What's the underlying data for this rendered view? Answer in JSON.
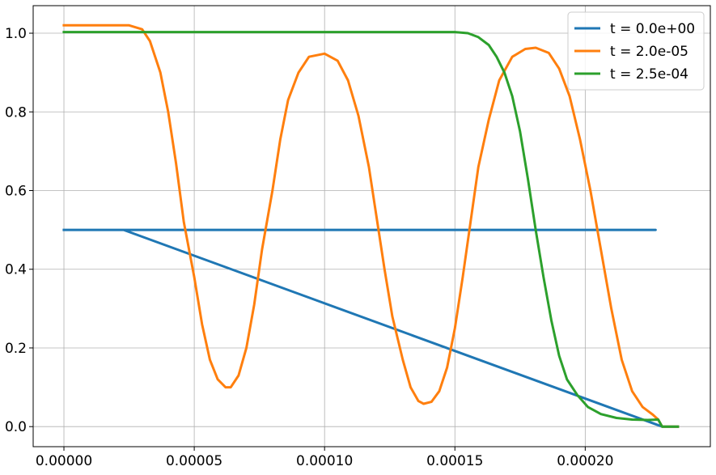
{
  "chart_data": {
    "type": "line",
    "title": "",
    "xlabel": "",
    "ylabel": "",
    "xlim": [
      -1.18e-05,
      0.000248
    ],
    "ylim": [
      -0.051,
      1.07
    ],
    "grid": true,
    "legend_position": "top-right",
    "x_ticks": [
      {
        "value": 0.0,
        "label": "0.00000"
      },
      {
        "value": 5e-05,
        "label": "0.00005"
      },
      {
        "value": 0.0001,
        "label": "0.00010"
      },
      {
        "value": 0.00015,
        "label": "0.00015"
      },
      {
        "value": 0.0002,
        "label": "0.00020"
      }
    ],
    "y_ticks": [
      {
        "value": 0.0,
        "label": "0.0"
      },
      {
        "value": 0.2,
        "label": "0.2"
      },
      {
        "value": 0.4,
        "label": "0.4"
      },
      {
        "value": 0.6,
        "label": "0.6"
      },
      {
        "value": 0.8,
        "label": "0.8"
      },
      {
        "value": 1.0,
        "label": "1.0"
      }
    ],
    "series": [
      {
        "name": "t = 0.0e+00",
        "color": "#1f77b4",
        "points": [
          [
            -5e-07,
            0.5
          ],
          [
            0.000227,
            0.5
          ],
          [
            2.29e-05,
            0.5
          ],
          [
            0.0002295,
            0.0
          ],
          [
            0.000236,
            0.0
          ]
        ]
      },
      {
        "name": "t = 2.0e-05",
        "color": "#ff7f0e",
        "points": [
          [
            -5e-07,
            1.02
          ],
          [
            2.5e-05,
            1.02
          ],
          [
            3e-05,
            1.01
          ],
          [
            3.3e-05,
            0.98
          ],
          [
            3.7e-05,
            0.9
          ],
          [
            4e-05,
            0.8
          ],
          [
            4.3e-05,
            0.67
          ],
          [
            4.6e-05,
            0.52
          ],
          [
            5e-05,
            0.38
          ],
          [
            5.3e-05,
            0.26
          ],
          [
            5.6e-05,
            0.17
          ],
          [
            5.9e-05,
            0.12
          ],
          [
            6.2e-05,
            0.1
          ],
          [
            6.4e-05,
            0.1
          ],
          [
            6.7e-05,
            0.13
          ],
          [
            7e-05,
            0.2
          ],
          [
            7.3e-05,
            0.31
          ],
          [
            7.6e-05,
            0.45
          ],
          [
            8e-05,
            0.6
          ],
          [
            8.3e-05,
            0.73
          ],
          [
            8.6e-05,
            0.83
          ],
          [
            9e-05,
            0.9
          ],
          [
            9.4e-05,
            0.94
          ],
          [
            0.0001,
            0.948
          ],
          [
            0.000105,
            0.93
          ],
          [
            0.000109,
            0.88
          ],
          [
            0.000113,
            0.79
          ],
          [
            0.000117,
            0.66
          ],
          [
            0.00012,
            0.53
          ],
          [
            0.000123,
            0.4
          ],
          [
            0.000126,
            0.28
          ],
          [
            0.00013,
            0.17
          ],
          [
            0.000133,
            0.1
          ],
          [
            0.000136,
            0.065
          ],
          [
            0.000138,
            0.058
          ],
          [
            0.000141,
            0.063
          ],
          [
            0.000144,
            0.09
          ],
          [
            0.000147,
            0.15
          ],
          [
            0.00015,
            0.25
          ],
          [
            0.000153,
            0.38
          ],
          [
            0.000156,
            0.52
          ],
          [
            0.000159,
            0.66
          ],
          [
            0.000163,
            0.78
          ],
          [
            0.000167,
            0.88
          ],
          [
            0.000172,
            0.94
          ],
          [
            0.000177,
            0.96
          ],
          [
            0.000181,
            0.963
          ],
          [
            0.000186,
            0.95
          ],
          [
            0.00019,
            0.91
          ],
          [
            0.000194,
            0.84
          ],
          [
            0.000198,
            0.73
          ],
          [
            0.000202,
            0.6
          ],
          [
            0.000206,
            0.45
          ],
          [
            0.00021,
            0.3
          ],
          [
            0.000214,
            0.17
          ],
          [
            0.000218,
            0.09
          ],
          [
            0.000222,
            0.05
          ],
          [
            0.000226,
            0.03
          ],
          [
            0.000228,
            0.018
          ],
          [
            0.0002295,
            0.0
          ],
          [
            0.000236,
            0.0
          ]
        ]
      },
      {
        "name": "t = 2.5e-04",
        "color": "#2ca02c",
        "points": [
          [
            -5e-07,
            1.003
          ],
          [
            0.00015,
            1.003
          ],
          [
            0.000155,
            1.0
          ],
          [
            0.000159,
            0.99
          ],
          [
            0.000163,
            0.97
          ],
          [
            0.000166,
            0.94
          ],
          [
            0.000169,
            0.9
          ],
          [
            0.000172,
            0.84
          ],
          [
            0.000175,
            0.75
          ],
          [
            0.000178,
            0.63
          ],
          [
            0.000181,
            0.5
          ],
          [
            0.000184,
            0.38
          ],
          [
            0.000187,
            0.27
          ],
          [
            0.00019,
            0.18
          ],
          [
            0.000193,
            0.12
          ],
          [
            0.000197,
            0.08
          ],
          [
            0.000201,
            0.05
          ],
          [
            0.000206,
            0.032
          ],
          [
            0.000212,
            0.022
          ],
          [
            0.000218,
            0.018
          ],
          [
            0.000224,
            0.017
          ],
          [
            0.000228,
            0.018
          ],
          [
            0.0002295,
            0.0
          ],
          [
            0.000236,
            0.0
          ]
        ]
      }
    ]
  }
}
